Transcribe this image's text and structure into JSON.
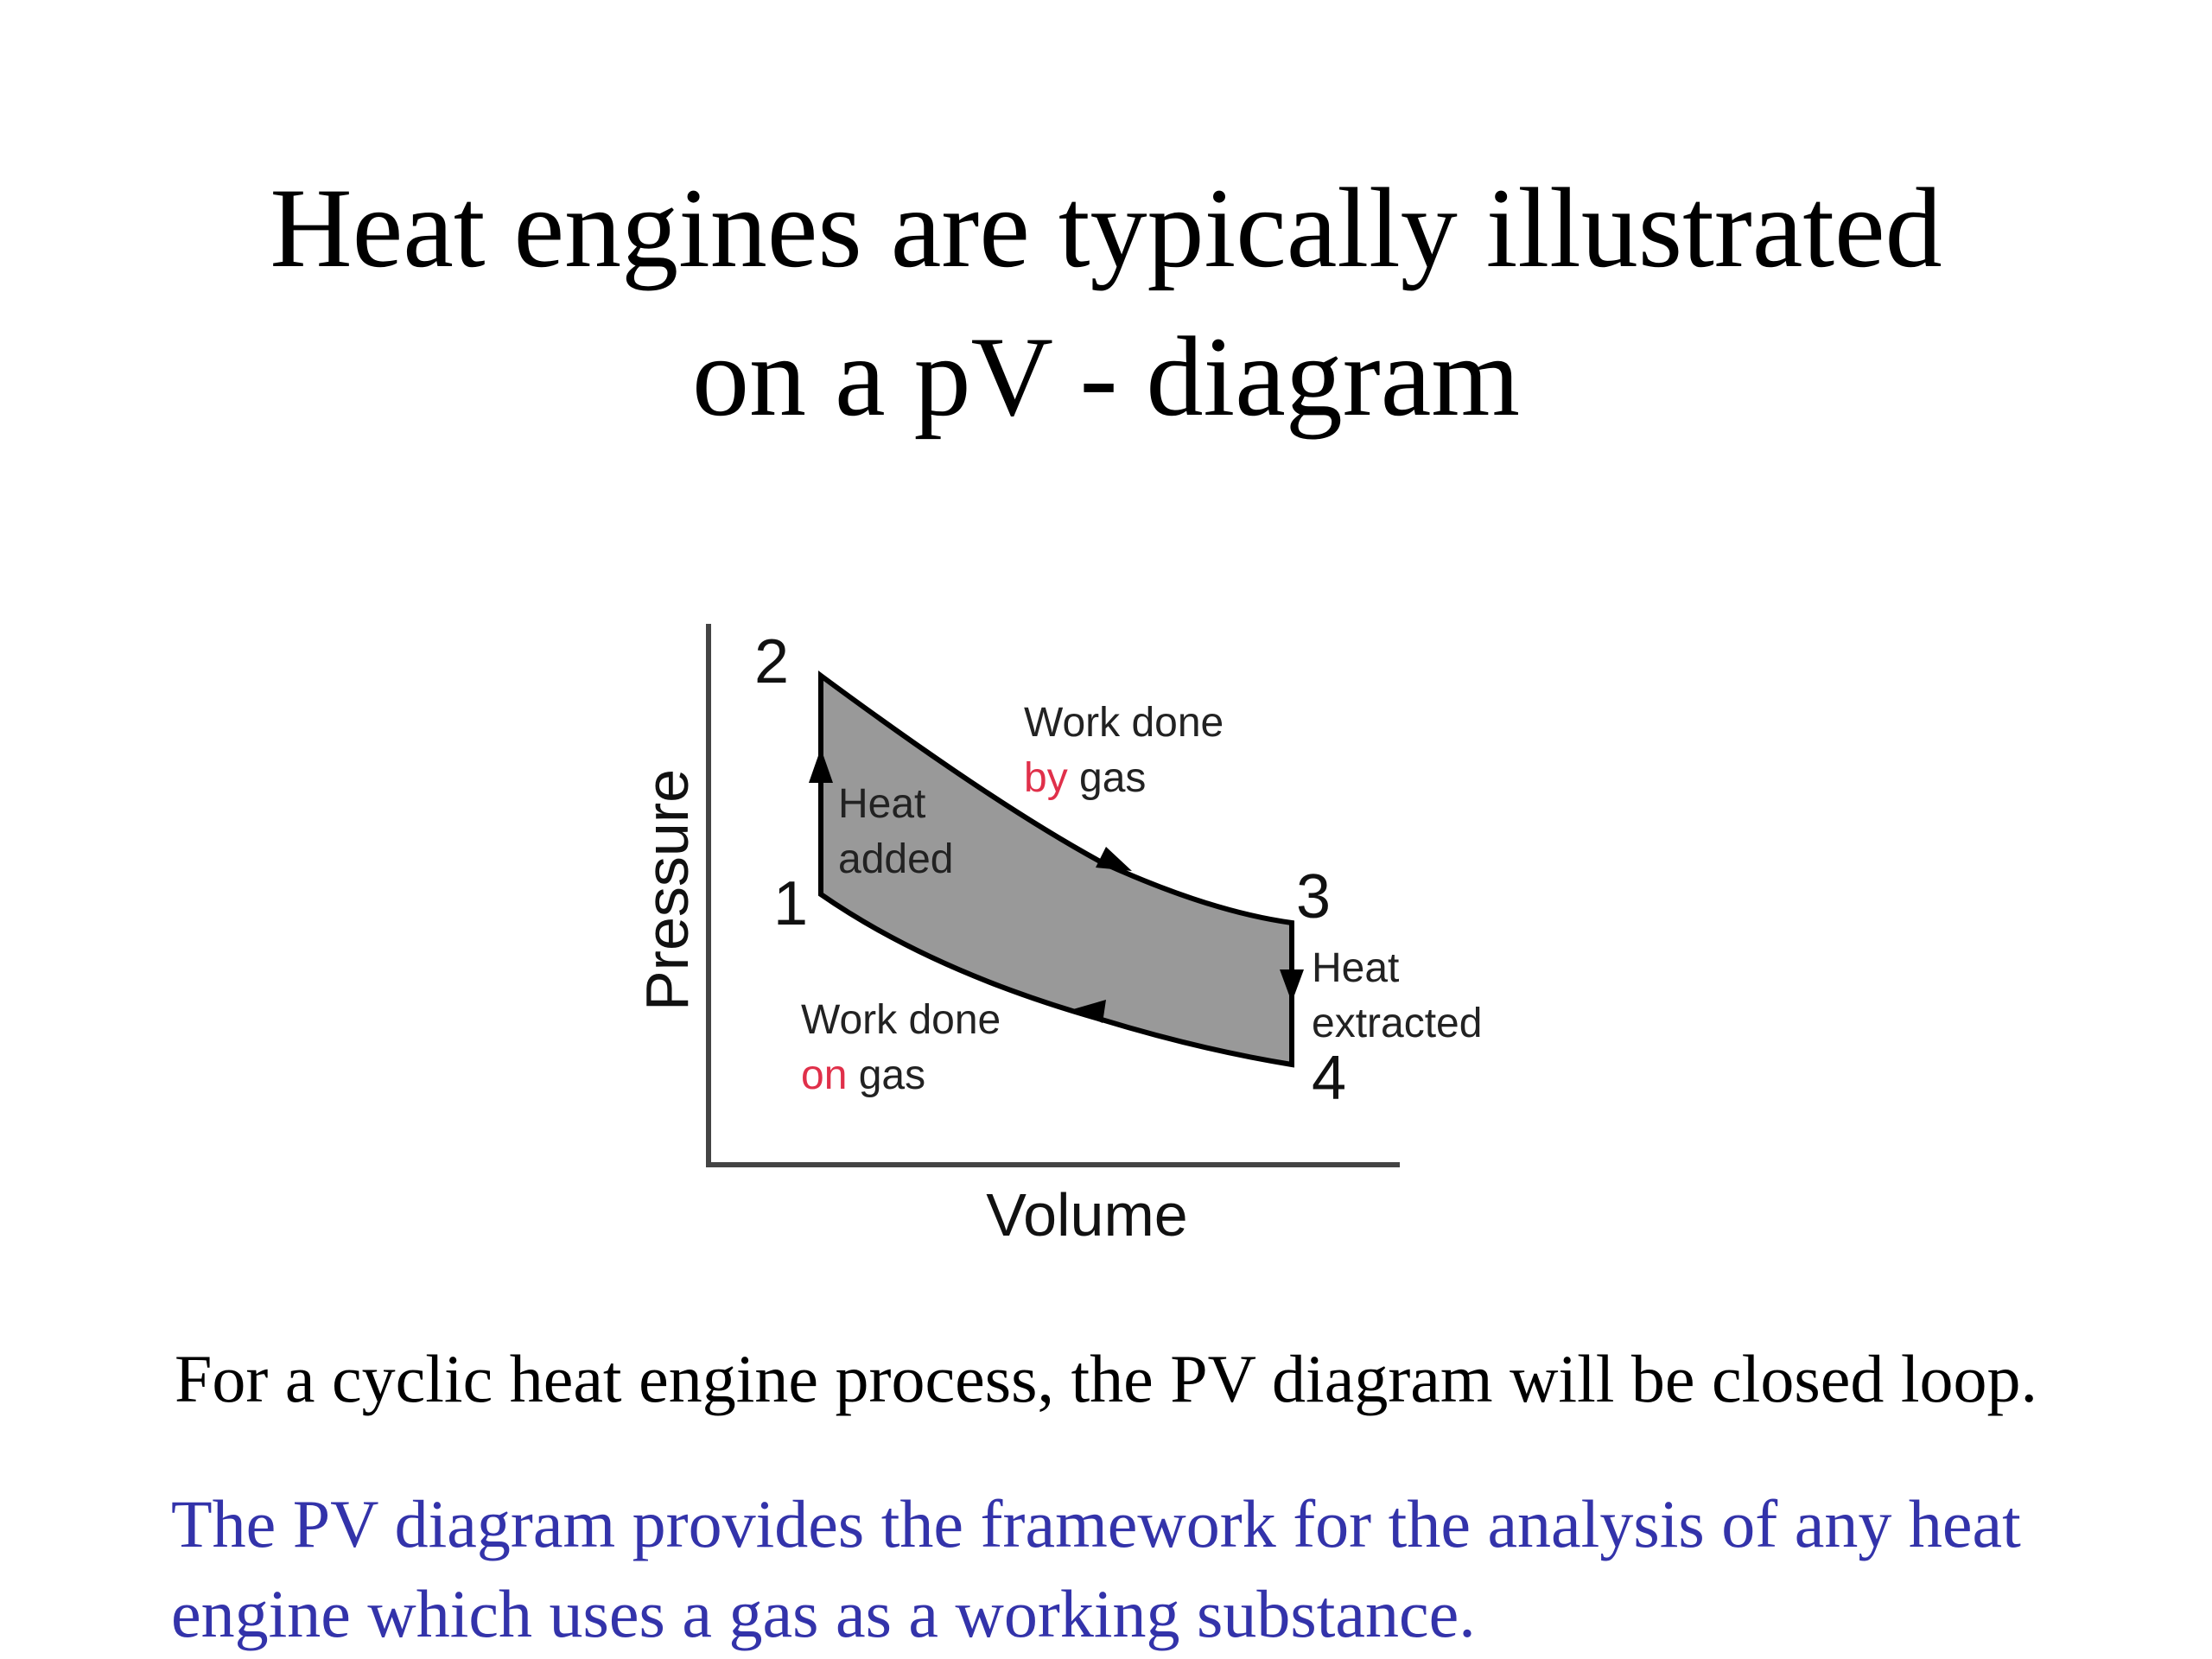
{
  "slide": {
    "title_line1": "Heat engines are typically illustrated",
    "title_line2": "on a pV - diagram",
    "caption": "For a cyclic heat engine process, the PV diagram will be closed loop.",
    "note": "The PV diagram provides the framework for the analysis of any heat engine which uses a gas as a working substance."
  },
  "diagram": {
    "axis_y_label": "Pressure",
    "axis_x_label": "Volume",
    "point_labels": {
      "p1": "1",
      "p2": "2",
      "p3": "3",
      "p4": "4"
    },
    "heat_added": [
      "Heat",
      "added"
    ],
    "heat_extracted": [
      "Heat",
      "extracted"
    ],
    "work_by_gas": {
      "line1": "Work done",
      "highlight": "by",
      "rest": " gas"
    },
    "work_on_gas": {
      "line1": "Work done",
      "highlight": "on",
      "rest": " gas"
    },
    "colors": {
      "loop_fill": "#999999",
      "highlight": "#e0304a",
      "axis": "#444444",
      "note_text": "#3333aa"
    }
  }
}
